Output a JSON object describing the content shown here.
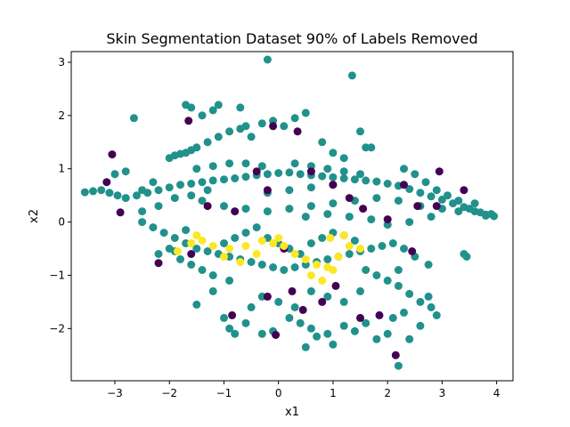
{
  "chart_data": {
    "type": "scatter",
    "title": "Skin Segmentation Dataset 90% of Labels Removed",
    "xlabel": "x1",
    "ylabel": "x2",
    "xlim": [
      -3.8,
      4.3
    ],
    "ylim": [
      -2.98,
      3.2
    ],
    "xticks": [
      -3,
      -2,
      -1,
      0,
      1,
      2,
      3,
      4
    ],
    "yticks": [
      -2,
      -1,
      0,
      1,
      2,
      3
    ],
    "grid": false,
    "legend": "none",
    "colors": {
      "unlabeled": "#21918c",
      "class_a": "#440154",
      "class_b": "#fde725"
    },
    "series": [
      {
        "color": "#21918c",
        "points": [
          [
            -3.55,
            0.56
          ],
          [
            -3.4,
            0.58
          ],
          [
            -3.25,
            0.6
          ],
          [
            -3.1,
            0.55
          ],
          [
            -2.95,
            0.5
          ],
          [
            -2.8,
            0.45
          ],
          [
            -2.6,
            0.5
          ],
          [
            -2.4,
            0.55
          ],
          [
            -2.2,
            0.6
          ],
          [
            -2.0,
            0.65
          ],
          [
            -1.8,
            0.7
          ],
          [
            -1.6,
            0.72
          ],
          [
            -1.4,
            0.75
          ],
          [
            -1.2,
            0.78
          ],
          [
            -1.0,
            0.8
          ],
          [
            -0.8,
            0.82
          ],
          [
            -0.6,
            0.85
          ],
          [
            -0.4,
            0.88
          ],
          [
            -0.2,
            0.9
          ],
          [
            0.0,
            0.92
          ],
          [
            0.2,
            0.93
          ],
          [
            0.4,
            0.9
          ],
          [
            0.6,
            0.88
          ],
          [
            0.8,
            0.86
          ],
          [
            1.0,
            0.84
          ],
          [
            1.2,
            0.82
          ],
          [
            1.4,
            0.8
          ],
          [
            1.6,
            0.78
          ],
          [
            1.8,
            0.76
          ],
          [
            2.0,
            0.72
          ],
          [
            2.2,
            0.68
          ],
          [
            2.4,
            0.62
          ],
          [
            2.6,
            0.55
          ],
          [
            2.8,
            0.48
          ],
          [
            3.0,
            0.42
          ],
          [
            3.2,
            0.35
          ],
          [
            3.4,
            0.28
          ],
          [
            3.6,
            0.2
          ],
          [
            3.8,
            0.14
          ],
          [
            3.95,
            0.11
          ],
          [
            -3.0,
            0.9
          ],
          [
            -2.8,
            0.95
          ],
          [
            -2.5,
            0.6
          ],
          [
            -2.3,
            0.75
          ],
          [
            -2.0,
            1.2
          ],
          [
            -1.9,
            1.25
          ],
          [
            -1.8,
            1.28
          ],
          [
            -1.7,
            1.3
          ],
          [
            -1.6,
            1.35
          ],
          [
            -1.5,
            1.4
          ],
          [
            -1.3,
            1.5
          ],
          [
            -1.1,
            1.6
          ],
          [
            -0.9,
            1.7
          ],
          [
            -0.7,
            1.75
          ],
          [
            -0.5,
            1.6
          ],
          [
            -0.3,
            1.85
          ],
          [
            -0.1,
            1.9
          ],
          [
            0.1,
            1.8
          ],
          [
            0.3,
            1.95
          ],
          [
            0.5,
            2.05
          ],
          [
            -1.7,
            2.2
          ],
          [
            -1.6,
            2.15
          ],
          [
            -1.2,
            2.1
          ],
          [
            -0.7,
            2.15
          ],
          [
            -1.4,
            2.0
          ],
          [
            -2.65,
            1.95
          ],
          [
            -0.2,
            3.05
          ],
          [
            1.35,
            2.75
          ],
          [
            1.5,
            1.7
          ],
          [
            1.7,
            1.4
          ],
          [
            -1.5,
            1.0
          ],
          [
            -1.2,
            1.05
          ],
          [
            -0.9,
            1.1
          ],
          [
            -0.6,
            1.1
          ],
          [
            -0.3,
            1.05
          ],
          [
            0.3,
            1.1
          ],
          [
            0.6,
            1.05
          ],
          [
            0.9,
            1.0
          ],
          [
            1.2,
            0.95
          ],
          [
            1.5,
            0.9
          ],
          [
            -1.4,
            0.4
          ],
          [
            -1.0,
            0.3
          ],
          [
            -0.6,
            0.25
          ],
          [
            -0.2,
            0.2
          ],
          [
            0.2,
            0.25
          ],
          [
            0.6,
            0.3
          ],
          [
            1.0,
            0.35
          ],
          [
            1.4,
            0.4
          ],
          [
            1.8,
            0.45
          ],
          [
            2.2,
            0.4
          ],
          [
            2.6,
            0.3
          ],
          [
            3.0,
            0.25
          ],
          [
            3.3,
            0.2
          ],
          [
            2.8,
            0.1
          ],
          [
            2.4,
            0.0
          ],
          [
            2.0,
            -0.05
          ],
          [
            1.7,
            0.05
          ],
          [
            1.3,
            0.1
          ],
          [
            0.9,
            0.15
          ],
          [
            0.5,
            0.1
          ],
          [
            -2.5,
            0.0
          ],
          [
            -2.3,
            -0.1
          ],
          [
            -2.1,
            -0.2
          ],
          [
            -1.9,
            -0.3
          ],
          [
            -1.7,
            -0.4
          ],
          [
            -1.5,
            -0.5
          ],
          [
            -1.3,
            -0.55
          ],
          [
            -1.1,
            -0.6
          ],
          [
            -0.9,
            -0.65
          ],
          [
            -0.7,
            -0.7
          ],
          [
            -0.5,
            -0.75
          ],
          [
            -0.3,
            -0.8
          ],
          [
            -0.1,
            -0.85
          ],
          [
            0.1,
            -0.9
          ],
          [
            0.3,
            -0.85
          ],
          [
            0.5,
            -0.8
          ],
          [
            0.7,
            -0.75
          ],
          [
            0.9,
            -0.7
          ],
          [
            1.1,
            -0.65
          ],
          [
            1.3,
            -0.6
          ],
          [
            1.5,
            -0.55
          ],
          [
            1.7,
            -0.5
          ],
          [
            1.9,
            -0.45
          ],
          [
            2.1,
            -0.4
          ],
          [
            2.3,
            -0.5
          ],
          [
            -2.0,
            -0.5
          ],
          [
            -1.8,
            -0.7
          ],
          [
            -1.6,
            -0.8
          ],
          [
            -1.4,
            -0.9
          ],
          [
            -1.2,
            -1.0
          ],
          [
            -1.0,
            -0.4
          ],
          [
            -0.8,
            -0.3
          ],
          [
            -0.6,
            -0.2
          ],
          [
            -0.4,
            -0.1
          ],
          [
            -0.2,
            -0.3
          ],
          [
            0.0,
            -0.4
          ],
          [
            0.2,
            -0.5
          ],
          [
            0.4,
            -0.6
          ],
          [
            0.6,
            -0.4
          ],
          [
            0.8,
            -0.3
          ],
          [
            1.0,
            -0.2
          ],
          [
            1.2,
            -0.25
          ],
          [
            1.4,
            -0.35
          ],
          [
            1.6,
            -0.9
          ],
          [
            1.8,
            -1.0
          ],
          [
            2.0,
            -1.1
          ],
          [
            2.2,
            -1.2
          ],
          [
            2.4,
            -1.35
          ],
          [
            2.6,
            -1.5
          ],
          [
            2.8,
            -1.6
          ],
          [
            2.3,
            -1.7
          ],
          [
            2.1,
            -1.8
          ],
          [
            2.6,
            -1.95
          ],
          [
            2.9,
            -1.75
          ],
          [
            2.75,
            -0.8
          ],
          [
            3.4,
            -0.6
          ],
          [
            2.4,
            -2.2
          ],
          [
            2.2,
            -2.7
          ],
          [
            -1.0,
            -1.8
          ],
          [
            -0.9,
            -2.0
          ],
          [
            -0.8,
            -2.1
          ],
          [
            -0.6,
            -1.9
          ],
          [
            -0.3,
            -2.1
          ],
          [
            -0.1,
            -2.05
          ],
          [
            0.2,
            -1.8
          ],
          [
            0.4,
            -1.9
          ],
          [
            0.6,
            -2.0
          ],
          [
            0.7,
            -2.15
          ],
          [
            0.9,
            -2.1
          ],
          [
            1.2,
            -1.95
          ],
          [
            1.4,
            -2.05
          ],
          [
            1.6,
            -1.9
          ],
          [
            1.8,
            -2.2
          ],
          [
            2.0,
            -2.1
          ],
          [
            0.5,
            -2.35
          ],
          [
            1.0,
            -2.3
          ],
          [
            -0.5,
            -1.6
          ],
          [
            -0.3,
            -1.4
          ],
          [
            0.0,
            -1.5
          ],
          [
            0.3,
            -1.6
          ],
          [
            0.6,
            -1.3
          ],
          [
            0.9,
            -1.4
          ],
          [
            1.2,
            -1.5
          ],
          [
            1.5,
            -1.3
          ],
          [
            -2.5,
            0.2
          ],
          [
            -2.2,
            0.3
          ],
          [
            -1.9,
            0.45
          ],
          [
            -1.6,
            0.5
          ],
          [
            -1.3,
            0.6
          ],
          [
            3.6,
            0.35
          ],
          [
            3.8,
            0.12
          ],
          [
            3.9,
            0.15
          ],
          [
            3.7,
            0.18
          ],
          [
            3.5,
            0.25
          ],
          [
            3.3,
            0.4
          ],
          [
            3.1,
            0.5
          ],
          [
            2.9,
            0.6
          ],
          [
            2.7,
            0.75
          ],
          [
            2.5,
            0.9
          ],
          [
            2.3,
            1.0
          ],
          [
            1.0,
            1.3
          ],
          [
            1.2,
            1.2
          ],
          [
            1.6,
            1.4
          ],
          [
            0.8,
            1.5
          ],
          [
            -0.6,
            1.8
          ],
          [
            -1.1,
            2.2
          ],
          [
            0.2,
            0.6
          ],
          [
            -0.2,
            0.55
          ],
          [
            0.6,
            0.65
          ],
          [
            1.0,
            0.7
          ],
          [
            -1.5,
            -1.55
          ],
          [
            -1.9,
            -0.55
          ],
          [
            -1.7,
            -0.15
          ],
          [
            -2.2,
            -0.6
          ],
          [
            -1.2,
            -1.3
          ],
          [
            -0.9,
            -1.1
          ],
          [
            2.5,
            -0.65
          ],
          [
            2.2,
            -0.9
          ],
          [
            3.45,
            -0.65
          ],
          [
            2.75,
            -1.4
          ]
        ]
      },
      {
        "color": "#440154",
        "points": [
          [
            -3.05,
            1.27
          ],
          [
            -3.15,
            0.75
          ],
          [
            -2.9,
            0.18
          ],
          [
            -2.2,
            -0.77
          ],
          [
            -1.65,
            1.9
          ],
          [
            -0.1,
            1.8
          ],
          [
            0.35,
            1.7
          ],
          [
            -0.4,
            0.95
          ],
          [
            -0.2,
            0.6
          ],
          [
            0.6,
            0.95
          ],
          [
            1.0,
            0.7
          ],
          [
            1.3,
            0.45
          ],
          [
            1.55,
            0.25
          ],
          [
            2.3,
            0.7
          ],
          [
            2.55,
            0.3
          ],
          [
            2.9,
            0.3
          ],
          [
            3.4,
            0.6
          ],
          [
            2.0,
            0.05
          ],
          [
            2.95,
            0.95
          ],
          [
            -0.05,
            -2.12
          ],
          [
            -0.85,
            -1.75
          ],
          [
            -0.2,
            -1.4
          ],
          [
            0.45,
            -1.65
          ],
          [
            0.8,
            -1.5
          ],
          [
            1.05,
            -1.2
          ],
          [
            1.5,
            -1.8
          ],
          [
            2.45,
            -0.55
          ],
          [
            2.15,
            -2.5
          ],
          [
            0.25,
            -1.3
          ],
          [
            1.85,
            -1.75
          ],
          [
            -1.3,
            0.3
          ],
          [
            -0.8,
            0.2
          ],
          [
            0.1,
            -0.5
          ],
          [
            -1.6,
            -0.6
          ]
        ]
      },
      {
        "color": "#fde725",
        "points": [
          [
            -1.85,
            -0.55
          ],
          [
            -1.6,
            -0.4
          ],
          [
            -1.4,
            -0.35
          ],
          [
            -1.2,
            -0.45
          ],
          [
            -0.9,
            -0.5
          ],
          [
            -0.6,
            -0.45
          ],
          [
            -0.3,
            -0.35
          ],
          [
            -0.1,
            -0.4
          ],
          [
            0.1,
            -0.45
          ],
          [
            0.3,
            -0.6
          ],
          [
            0.5,
            -0.7
          ],
          [
            0.7,
            -0.8
          ],
          [
            0.9,
            -0.85
          ],
          [
            1.1,
            -0.65
          ],
          [
            1.3,
            -0.45
          ],
          [
            1.5,
            -0.5
          ],
          [
            -1.0,
            -0.65
          ],
          [
            -0.7,
            -0.75
          ],
          [
            0.6,
            -1.0
          ],
          [
            0.8,
            -1.1
          ],
          [
            1.0,
            -0.9
          ],
          [
            -0.4,
            -0.6
          ],
          [
            -1.5,
            -0.25
          ],
          [
            0.0,
            -0.3
          ],
          [
            0.95,
            -0.3
          ],
          [
            1.2,
            -0.25
          ]
        ]
      }
    ]
  }
}
